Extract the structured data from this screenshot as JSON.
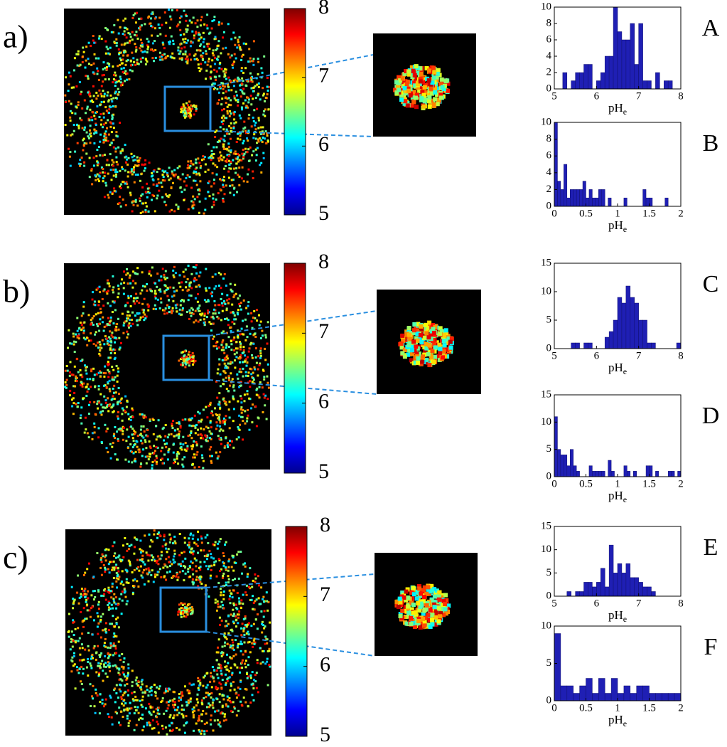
{
  "panel_labels": [
    "a)",
    "b)",
    "c)"
  ],
  "colorbars": [
    {
      "ylim": [
        5,
        8
      ],
      "yticks": [
        5,
        6,
        7,
        8
      ]
    },
    {
      "ylim": [
        5,
        8
      ],
      "yticks": [
        5,
        6,
        7,
        8
      ]
    },
    {
      "ylim": [
        5,
        8
      ],
      "yticks": [
        5,
        6,
        7,
        8
      ]
    }
  ],
  "chart_data": [
    {
      "type": "histogram",
      "title": "A",
      "xlabel": "pH",
      "xlabel_subscript": "e",
      "color": "#1f1fb4",
      "bins": [
        5,
        5.1,
        5.2,
        5.3,
        5.4,
        5.5,
        5.6,
        5.7,
        5.8,
        5.9,
        6,
        6.1,
        6.2,
        6.3,
        6.4,
        6.5,
        6.6,
        6.7,
        6.8,
        6.9,
        7,
        7.1,
        7.2,
        7.3,
        7.4,
        7.5,
        7.6,
        7.7,
        7.8,
        7.9,
        8
      ],
      "values": [
        0,
        0,
        2,
        0,
        1,
        2,
        2,
        3,
        3,
        0,
        1,
        2,
        4,
        4,
        10,
        7,
        6,
        6,
        8,
        3,
        8,
        1,
        1,
        0,
        2,
        0,
        1,
        1,
        0,
        0
      ],
      "xlim": [
        5,
        8
      ],
      "xticks": [
        5,
        6,
        7,
        8
      ],
      "ylim": [
        0,
        10
      ],
      "yticks": [
        0,
        2,
        4,
        6,
        8,
        10
      ]
    },
    {
      "type": "histogram",
      "title": "B",
      "xlabel": "pH",
      "xlabel_subscript": "e",
      "color": "#1f1fb4",
      "bins": [
        0,
        0.05,
        0.1,
        0.15,
        0.2,
        0.25,
        0.3,
        0.35,
        0.4,
        0.45,
        0.5,
        0.55,
        0.6,
        0.65,
        0.7,
        0.75,
        0.8,
        0.85,
        0.9,
        0.95,
        1,
        1.05,
        1.1,
        1.15,
        1.2,
        1.25,
        1.3,
        1.35,
        1.4,
        1.45,
        1.5,
        1.55,
        1.6,
        1.65,
        1.7,
        1.75,
        1.8,
        1.85,
        1.9,
        1.95,
        2
      ],
      "values": [
        10,
        3,
        2,
        5,
        1,
        2,
        2,
        2,
        2,
        3,
        1,
        2,
        1,
        1,
        2,
        2,
        0,
        1,
        0,
        0,
        0,
        0,
        1,
        0,
        0,
        0,
        0,
        0,
        2,
        1,
        1,
        0,
        0,
        0,
        0,
        1,
        0,
        0,
        0,
        0
      ],
      "xlim": [
        0,
        2
      ],
      "xticks": [
        0,
        0.5,
        1,
        1.5,
        2
      ],
      "ylim": [
        0,
        10
      ],
      "yticks": [
        0,
        2,
        4,
        6,
        8,
        10
      ]
    },
    {
      "type": "histogram",
      "title": "C",
      "xlabel": "pH",
      "xlabel_subscript": "e",
      "color": "#1f1fb4",
      "bins": [
        5,
        5.1,
        5.2,
        5.3,
        5.4,
        5.5,
        5.6,
        5.7,
        5.8,
        5.9,
        6,
        6.1,
        6.2,
        6.3,
        6.4,
        6.5,
        6.6,
        6.7,
        6.8,
        6.9,
        7,
        7.1,
        7.2,
        7.3,
        7.4,
        7.5,
        7.6,
        7.7,
        7.8,
        7.9,
        8
      ],
      "values": [
        0,
        0,
        0,
        0,
        1,
        1,
        0,
        1,
        1,
        0,
        0,
        0,
        2,
        3,
        5,
        9,
        8,
        11,
        9,
        8,
        5,
        5,
        1,
        1,
        0,
        0,
        0,
        0,
        0,
        1
      ],
      "xlim": [
        5,
        8
      ],
      "xticks": [
        5,
        6,
        7,
        8
      ],
      "ylim": [
        0,
        15
      ],
      "yticks": [
        0,
        5,
        10,
        15
      ]
    },
    {
      "type": "histogram",
      "title": "D",
      "xlabel": "pH",
      "xlabel_subscript": "e",
      "color": "#1f1fb4",
      "bins": [
        0,
        0.05,
        0.1,
        0.15,
        0.2,
        0.25,
        0.3,
        0.35,
        0.4,
        0.45,
        0.5,
        0.55,
        0.6,
        0.65,
        0.7,
        0.75,
        0.8,
        0.85,
        0.9,
        0.95,
        1,
        1.05,
        1.1,
        1.15,
        1.2,
        1.25,
        1.3,
        1.35,
        1.4,
        1.45,
        1.5,
        1.55,
        1.6,
        1.65,
        1.7,
        1.75,
        1.8,
        1.85,
        1.9,
        1.95,
        2
      ],
      "values": [
        11,
        5,
        4,
        4,
        2,
        5,
        2,
        1,
        0,
        0,
        0,
        2,
        1,
        1,
        1,
        1,
        0,
        3,
        1,
        0,
        0,
        0,
        2,
        1,
        0,
        1,
        0,
        0,
        0,
        2,
        2,
        0,
        1,
        0,
        0,
        0,
        1,
        1,
        0,
        1
      ],
      "xlim": [
        0,
        2
      ],
      "xticks": [
        0,
        0.5,
        1,
        1.5,
        2
      ],
      "ylim": [
        0,
        15
      ],
      "yticks": [
        0,
        5,
        10,
        15
      ]
    },
    {
      "type": "histogram",
      "title": "E",
      "xlabel": "pH",
      "xlabel_subscript": "e",
      "color": "#1f1fb4",
      "bins": [
        5,
        5.1,
        5.2,
        5.3,
        5.4,
        5.5,
        5.6,
        5.7,
        5.8,
        5.9,
        6,
        6.1,
        6.2,
        6.3,
        6.4,
        6.5,
        6.6,
        6.7,
        6.8,
        6.9,
        7,
        7.1,
        7.2,
        7.3,
        7.4,
        7.5,
        7.6,
        7.7,
        7.8,
        7.9,
        8
      ],
      "values": [
        0,
        0,
        0,
        1,
        0,
        1,
        1,
        3,
        3,
        2,
        3,
        6,
        2,
        11,
        5,
        7,
        5,
        7,
        4,
        4,
        3,
        2,
        2,
        1,
        0,
        0,
        0,
        0,
        0,
        0
      ],
      "xlim": [
        5,
        8
      ],
      "xticks": [
        5,
        6,
        7,
        8
      ],
      "ylim": [
        0,
        15
      ],
      "yticks": [
        0,
        5,
        10,
        15
      ]
    },
    {
      "type": "histogram",
      "title": "F",
      "xlabel": "pH",
      "xlabel_subscript": "e",
      "color": "#1f1fb4",
      "bins": [
        0,
        0.1,
        0.2,
        0.3,
        0.4,
        0.5,
        0.6,
        0.7,
        0.8,
        0.9,
        1,
        1.1,
        1.2,
        1.3,
        1.4,
        1.5,
        1.6,
        1.7,
        1.8,
        1.9,
        2
      ],
      "values": [
        9,
        2,
        2,
        1,
        2,
        3,
        1,
        3,
        1,
        3,
        1,
        2,
        1,
        2,
        2,
        1,
        1,
        1,
        1,
        1
      ],
      "xlim": [
        0,
        2
      ],
      "xticks": [
        0,
        0.5,
        1,
        1.5,
        2
      ],
      "ylim": [
        0,
        10
      ],
      "yticks": [
        0,
        5,
        10
      ]
    }
  ]
}
